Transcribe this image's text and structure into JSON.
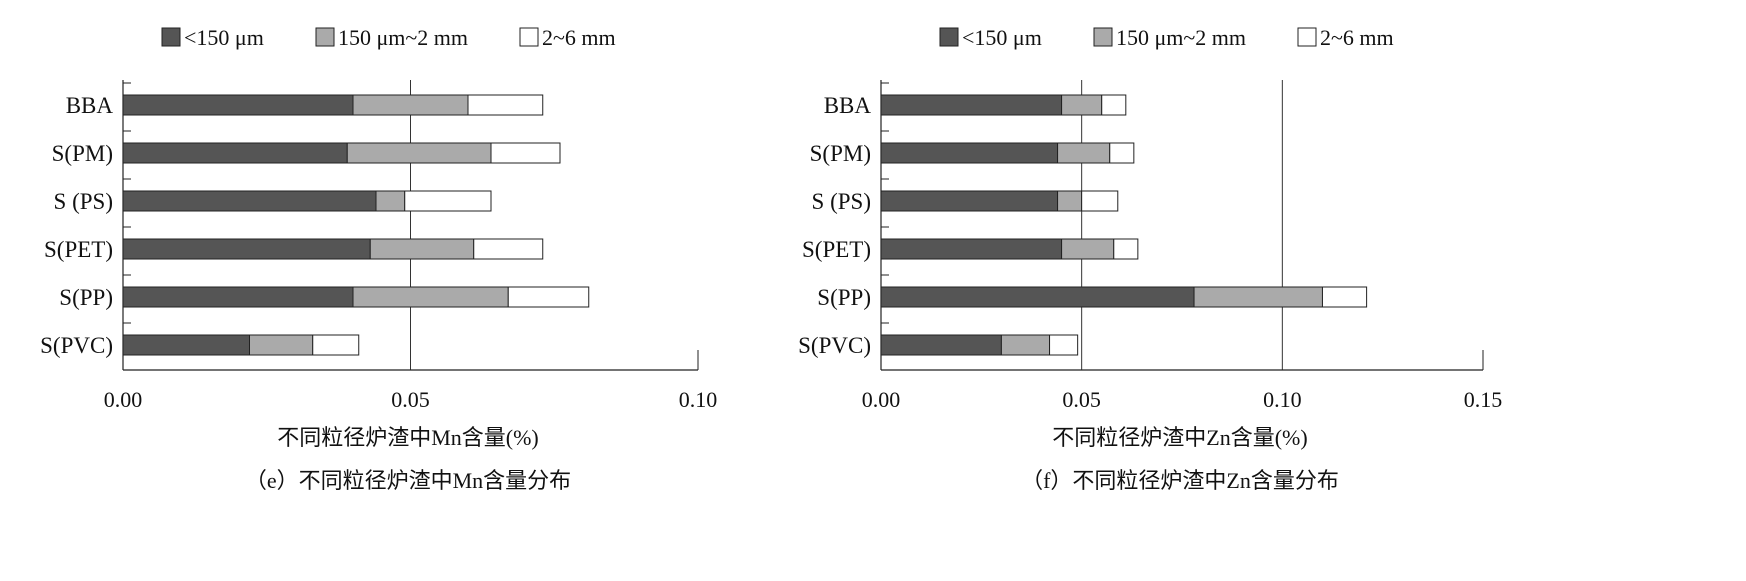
{
  "chart_data": [
    {
      "type": "bar",
      "orientation": "horizontal",
      "stacked": true,
      "caption": "（e）不同粒径炉渣中Mn含量分布",
      "xlabel": "不同粒径炉渣中Mn含量(%)",
      "xlim": [
        0,
        0.1
      ],
      "xticks": [
        "0.00",
        "0.05",
        "0.10"
      ],
      "categories": [
        "BBA",
        "S(PM)",
        "S (PS)",
        "S(PET)",
        "S(PP)",
        "S(PVC)"
      ],
      "series": [
        {
          "name": "<150 μm",
          "color": "#555555",
          "values": [
            0.04,
            0.039,
            0.044,
            0.043,
            0.04,
            0.022
          ]
        },
        {
          "name": "150 μm~2 mm",
          "color": "#aaaaaa",
          "values": [
            0.02,
            0.025,
            0.005,
            0.018,
            0.027,
            0.011
          ]
        },
        {
          "name": "2~6 mm",
          "color": "#ffffff",
          "values": [
            0.013,
            0.012,
            0.015,
            0.012,
            0.014,
            0.008
          ]
        }
      ],
      "grid": "vertical line at 0.05",
      "legend": "top"
    },
    {
      "type": "bar",
      "orientation": "horizontal",
      "stacked": true,
      "caption": "（f）不同粒径炉渣中Zn含量分布",
      "xlabel": "不同粒径炉渣中Zn含量(%)",
      "xlim": [
        0,
        0.15
      ],
      "xticks": [
        "0.00",
        "0.05",
        "0.10",
        "0.15"
      ],
      "categories": [
        "BBA",
        "S(PM)",
        "S (PS)",
        "S(PET)",
        "S(PP)",
        "S(PVC)"
      ],
      "series": [
        {
          "name": "<150 μm",
          "color": "#555555",
          "values": [
            0.045,
            0.044,
            0.044,
            0.045,
            0.078,
            0.03
          ]
        },
        {
          "name": "150 μm~2 mm",
          "color": "#aaaaaa",
          "values": [
            0.01,
            0.013,
            0.006,
            0.013,
            0.032,
            0.012
          ]
        },
        {
          "name": "2~6 mm",
          "color": "#ffffff",
          "values": [
            0.006,
            0.006,
            0.009,
            0.006,
            0.011,
            0.007
          ]
        }
      ],
      "grid": "vertical lines at 0.05 and 0.10",
      "legend": "top"
    }
  ]
}
